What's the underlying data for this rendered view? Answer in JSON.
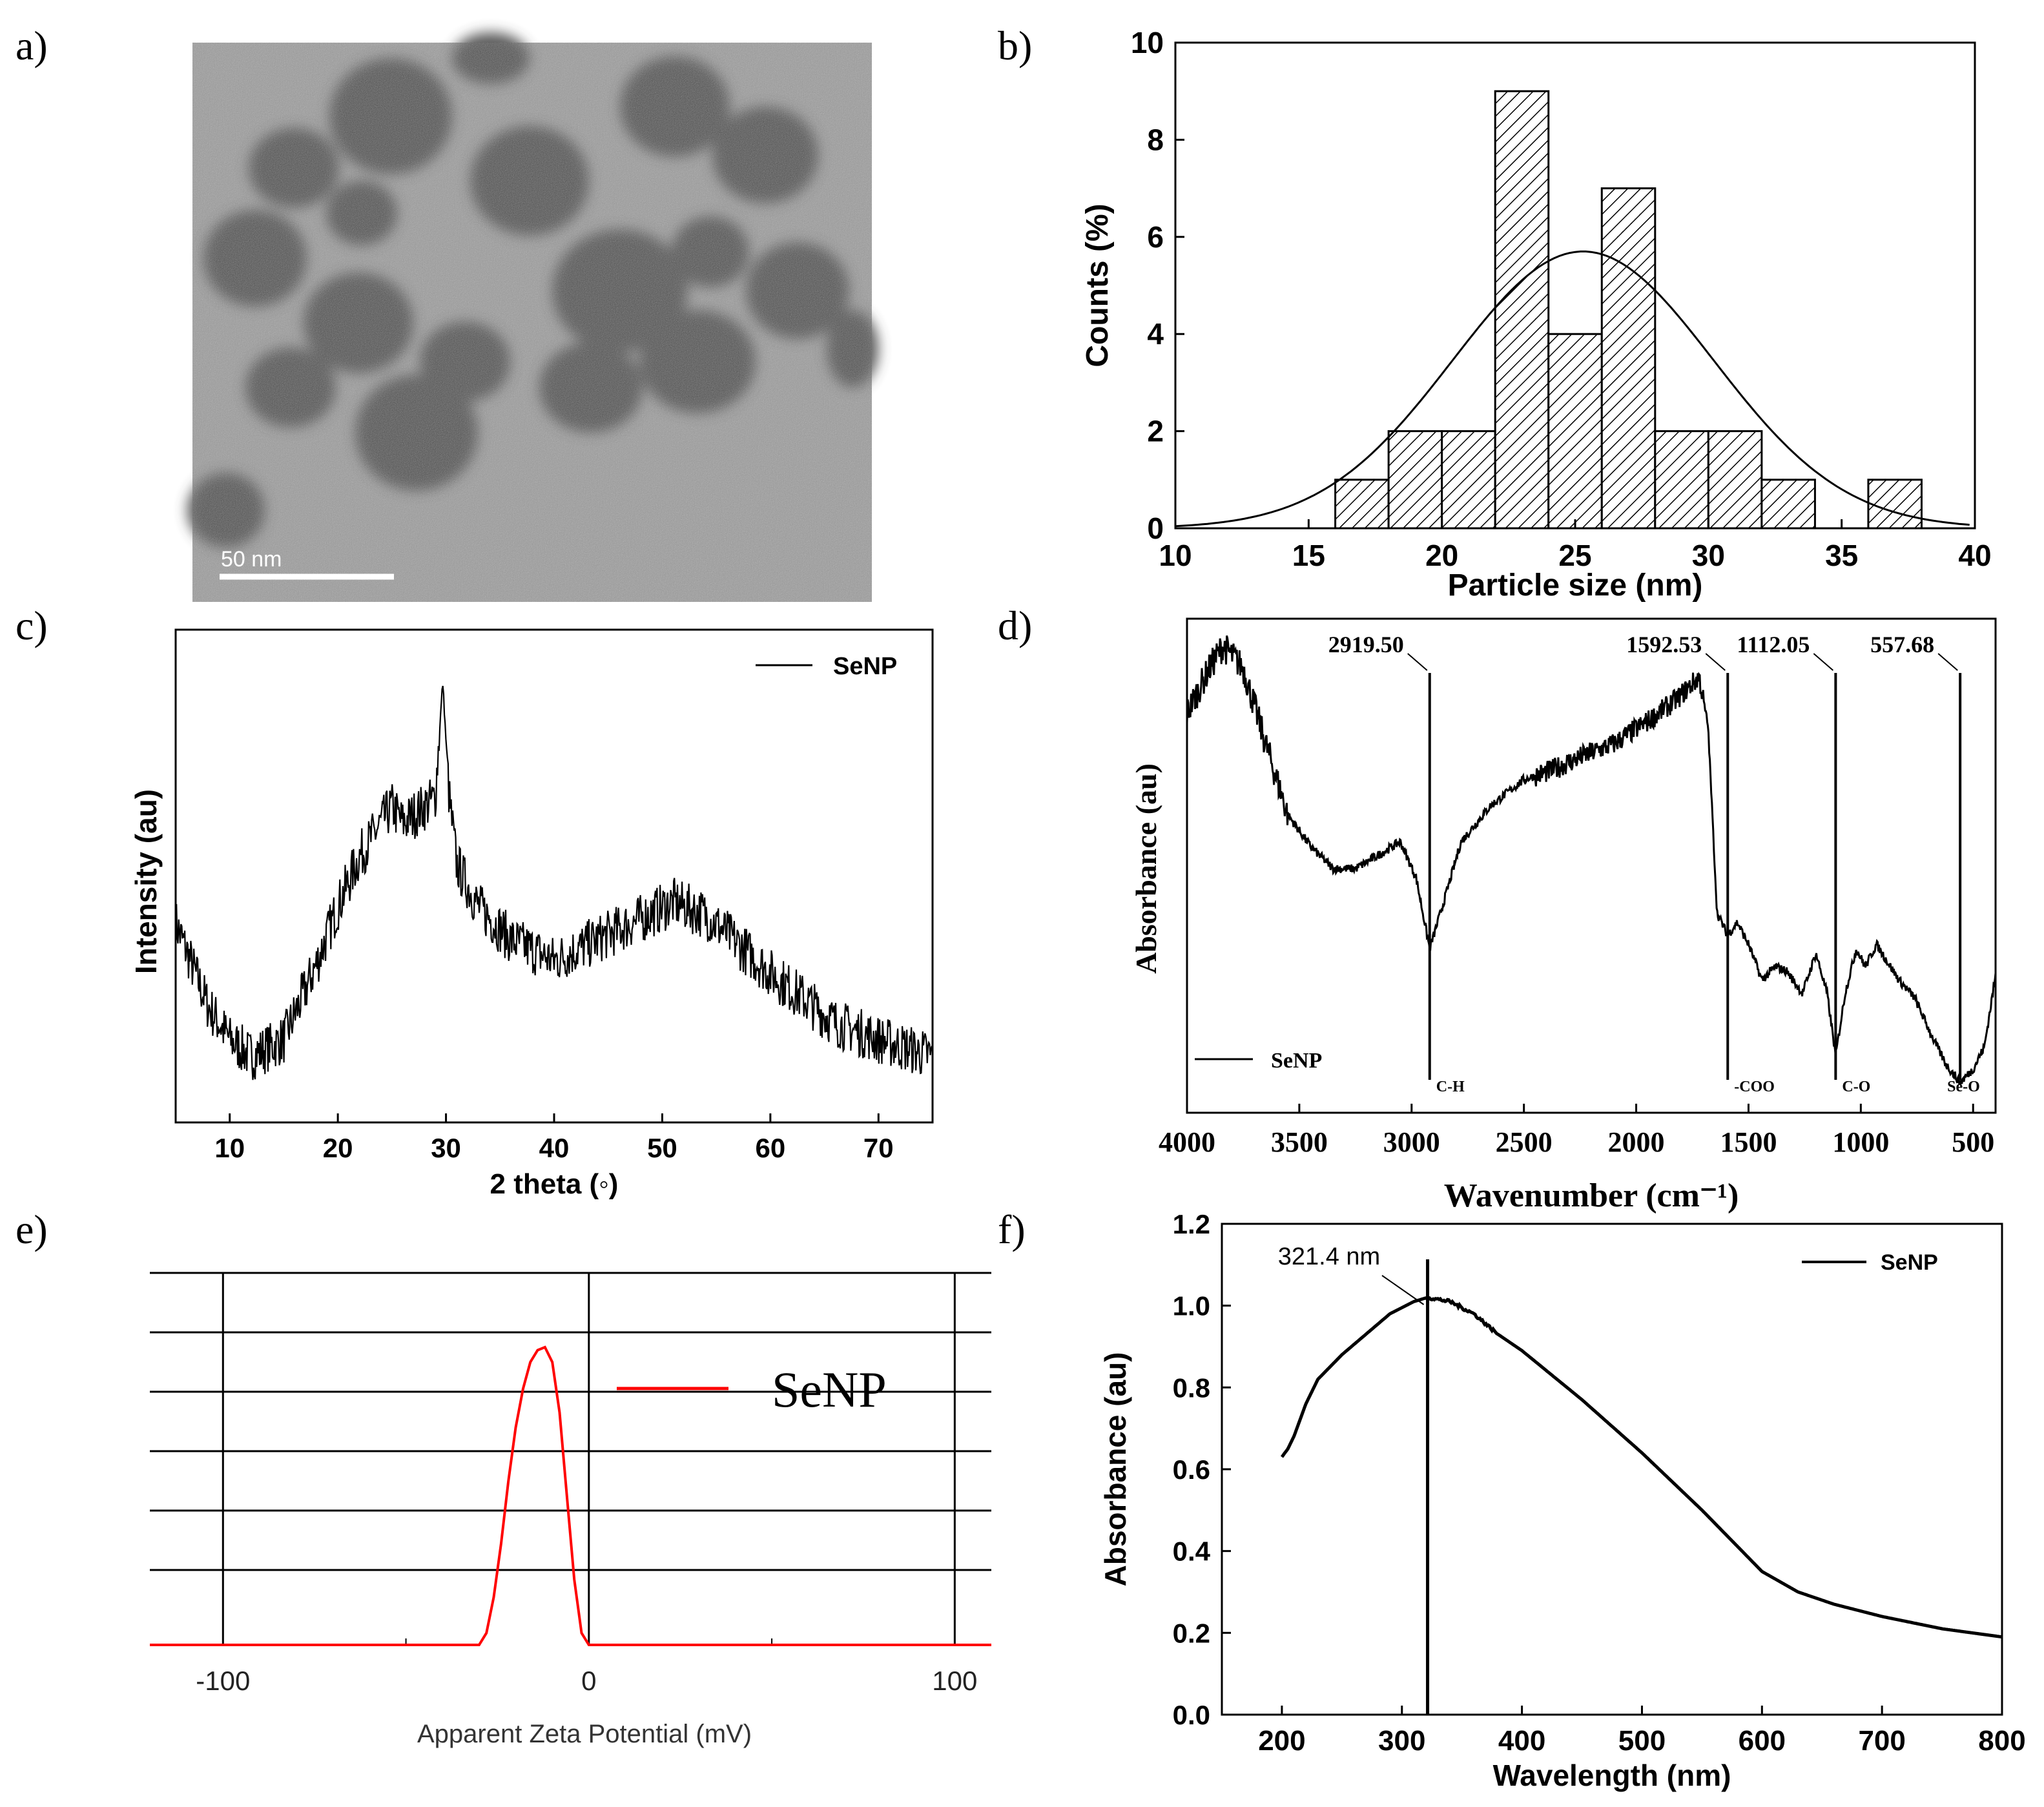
{
  "panel_labels": [
    "a)",
    "b)",
    "c)",
    "d)",
    "e)",
    "f)"
  ],
  "tem": {
    "scale_label": "50  nm"
  },
  "chart_data": [
    {
      "panel": "b",
      "type": "bar",
      "title": "",
      "xlabel": "Particle size (nm)",
      "ylabel": "Counts (%)",
      "xlim": [
        10,
        40
      ],
      "ylim": [
        0,
        10
      ],
      "xticks": [
        10,
        15,
        20,
        25,
        30,
        35,
        40
      ],
      "yticks": [
        0,
        2,
        4,
        6,
        8,
        10
      ],
      "bins": [
        {
          "x0": 16,
          "x1": 18,
          "value": 1
        },
        {
          "x0": 18,
          "x1": 20,
          "value": 2
        },
        {
          "x0": 20,
          "x1": 22,
          "value": 2
        },
        {
          "x0": 22,
          "x1": 24,
          "value": 9
        },
        {
          "x0": 24,
          "x1": 26,
          "value": 4
        },
        {
          "x0": 26,
          "x1": 28,
          "value": 7
        },
        {
          "x0": 28,
          "x1": 30,
          "value": 2
        },
        {
          "x0": 30,
          "x1": 32,
          "value": 2
        },
        {
          "x0": 32,
          "x1": 34,
          "value": 1
        },
        {
          "x0": 36,
          "x1": 38,
          "value": 1
        }
      ],
      "fit": {
        "type": "gaussian",
        "mean": 25.3,
        "sigma": 4.9,
        "amplitude": 5.7
      }
    },
    {
      "panel": "c",
      "type": "line",
      "xlabel": "2 theta (◦)",
      "ylabel": "Intensity (au)",
      "xlim": [
        5,
        75
      ],
      "xticks": [
        10,
        20,
        30,
        40,
        50,
        60,
        70
      ],
      "legend": "SeNP",
      "legend_position": "top-right",
      "series": [
        {
          "name": "SeNP",
          "x": [
            5,
            8,
            10,
            12,
            15,
            18,
            20,
            22,
            24,
            25,
            26,
            28,
            29,
            29.7,
            30.3,
            31,
            33,
            36,
            40,
            44,
            48,
            51,
            54,
            57,
            60,
            63,
            66,
            70,
            75
          ],
          "y": [
            0.42,
            0.22,
            0.14,
            0.1,
            0.14,
            0.32,
            0.46,
            0.58,
            0.66,
            0.7,
            0.66,
            0.7,
            0.72,
            1.0,
            0.72,
            0.56,
            0.46,
            0.38,
            0.33,
            0.38,
            0.43,
            0.47,
            0.44,
            0.37,
            0.3,
            0.24,
            0.18,
            0.14,
            0.1
          ]
        }
      ]
    },
    {
      "panel": "d",
      "type": "line",
      "xlabel": "Wavenumber (cm⁻¹)",
      "ylabel": "Absorbance (au)",
      "xlim": [
        4000,
        400
      ],
      "x_reversed": true,
      "xticks": [
        4000,
        3500,
        3000,
        2500,
        2000,
        1500,
        1000,
        500
      ],
      "legend": "SeNP",
      "legend_position": "bottom-left",
      "annotations": [
        {
          "x": 2919.5,
          "label": "2919.50",
          "group": "C-H"
        },
        {
          "x": 1592.53,
          "label": "1592.53",
          "group": "-COO"
        },
        {
          "x": 1112.05,
          "label": "1112.05",
          "group": "C-O"
        },
        {
          "x": 557.68,
          "label": "557.68",
          "group": "Se-O"
        }
      ],
      "series": [
        {
          "name": "SeNP",
          "x": [
            4000,
            3900,
            3840,
            3750,
            3650,
            3550,
            3450,
            3350,
            3250,
            3150,
            3050,
            2980,
            2919.5,
            2860,
            2780,
            2650,
            2500,
            2380,
            2250,
            2100,
            1950,
            1820,
            1720,
            1680,
            1640,
            1592.53,
            1550,
            1500,
            1440,
            1380,
            1330,
            1260,
            1200,
            1150,
            1112.05,
            1070,
            1020,
            980,
            930,
            880,
            830,
            760,
            680,
            620,
            557.68,
            500,
            450,
            400
          ],
          "y": [
            0.85,
            0.95,
            1.0,
            0.95,
            0.78,
            0.62,
            0.55,
            0.5,
            0.5,
            0.53,
            0.56,
            0.48,
            0.32,
            0.42,
            0.56,
            0.64,
            0.7,
            0.72,
            0.75,
            0.78,
            0.83,
            0.88,
            0.93,
            0.82,
            0.4,
            0.35,
            0.38,
            0.33,
            0.25,
            0.28,
            0.27,
            0.22,
            0.31,
            0.22,
            0.08,
            0.22,
            0.32,
            0.28,
            0.33,
            0.29,
            0.25,
            0.21,
            0.12,
            0.06,
            0.02,
            0.05,
            0.1,
            0.26
          ]
        }
      ]
    },
    {
      "panel": "e",
      "type": "line",
      "xlabel": "Apparent Zeta Potential (mV)",
      "ylabel": "",
      "xlim": [
        -120,
        110
      ],
      "xticks": [
        -100,
        0,
        100
      ],
      "xtick_labels": [
        "-100",
        "0",
        "100"
      ],
      "grid": true,
      "legend": "SeNP",
      "legend_position": "top-right",
      "series": [
        {
          "name": "SeNP",
          "color": "#ff0000",
          "x": [
            -120,
            -30,
            -28,
            -26,
            -24,
            -22,
            -20,
            -18,
            -16,
            -14,
            -12,
            -10,
            -8,
            -6,
            -4,
            -2,
            0,
            110
          ],
          "y": [
            0,
            0,
            0.04,
            0.16,
            0.34,
            0.55,
            0.73,
            0.86,
            0.95,
            0.99,
            1.0,
            0.95,
            0.78,
            0.5,
            0.22,
            0.04,
            0,
            0
          ]
        }
      ]
    },
    {
      "panel": "f",
      "type": "line",
      "xlabel": "Wavelength (nm)",
      "ylabel": "Absorbance (au)",
      "xlim": [
        150,
        800
      ],
      "ylim": [
        0,
        1.2
      ],
      "xticks": [
        200,
        300,
        400,
        500,
        600,
        700,
        800
      ],
      "yticks": [
        0.0,
        0.2,
        0.4,
        0.6,
        0.8,
        1.0,
        1.2
      ],
      "legend": "SeNP",
      "legend_position": "top-right",
      "annotations": [
        {
          "x": 321.4,
          "label": "321.4 nm"
        }
      ],
      "series": [
        {
          "name": "SeNP",
          "x": [
            200,
            205,
            210,
            220,
            230,
            240,
            250,
            270,
            290,
            310,
            321.4,
            340,
            360,
            380,
            400,
            450,
            500,
            550,
            580,
            600,
            630,
            660,
            700,
            750,
            800
          ],
          "y": [
            0.63,
            0.65,
            0.68,
            0.76,
            0.82,
            0.85,
            0.88,
            0.93,
            0.98,
            1.01,
            1.02,
            1.01,
            0.98,
            0.93,
            0.89,
            0.77,
            0.64,
            0.5,
            0.41,
            0.35,
            0.3,
            0.27,
            0.24,
            0.21,
            0.19
          ]
        }
      ]
    }
  ]
}
